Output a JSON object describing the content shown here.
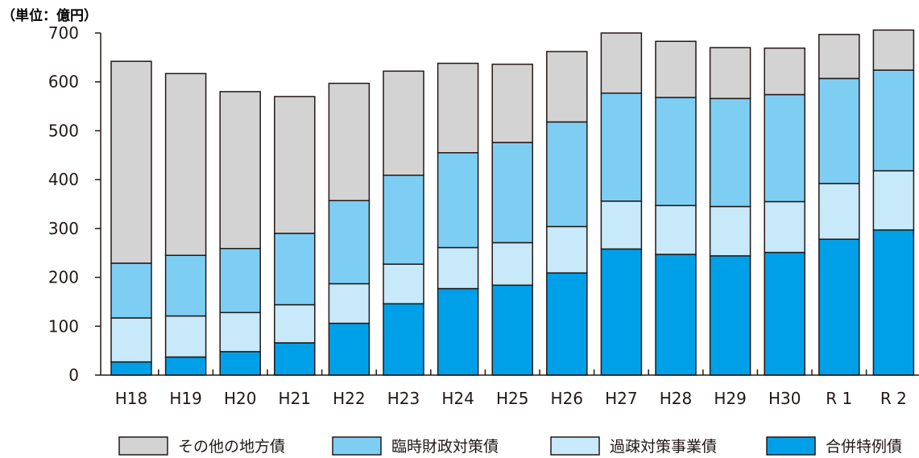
{
  "chart_data": {
    "type": "bar",
    "stacked": true,
    "unit_label": "（単位：億円）",
    "categories": [
      "H18",
      "H19",
      "H20",
      "H21",
      "H22",
      "H23",
      "H24",
      "H25",
      "H26",
      "H27",
      "H28",
      "H29",
      "H30",
      "R 1",
      "R 2"
    ],
    "ylim": [
      0,
      700
    ],
    "yticks": [
      0,
      100,
      200,
      300,
      400,
      500,
      600,
      700
    ],
    "grid": false,
    "legend_position": "bottom",
    "series": [
      {
        "name": "合併特例債",
        "color": "#00a0e9",
        "values": [
          27,
          37,
          48,
          66,
          106,
          146,
          177,
          184,
          209,
          258,
          247,
          244,
          251,
          278,
          297
        ]
      },
      {
        "name": "過疎対策事業債",
        "color": "#c7e9f9",
        "values": [
          90,
          84,
          80,
          78,
          81,
          81,
          84,
          87,
          95,
          98,
          100,
          101,
          104,
          114,
          121
        ]
      },
      {
        "name": "臨時財政対策債",
        "color": "#7ecef4",
        "values": [
          112,
          124,
          131,
          146,
          170,
          182,
          194,
          205,
          214,
          221,
          221,
          221,
          219,
          215,
          206
        ]
      },
      {
        "name": "その他の地方債",
        "color": "#d3d3d4",
        "values": [
          413,
          372,
          321,
          280,
          240,
          213,
          183,
          160,
          144,
          123,
          115,
          104,
          95,
          90,
          82
        ]
      }
    ],
    "legend_order": [
      "その他の地方債",
      "臨時財政対策債",
      "過疎対策事業債",
      "合併特例債"
    ]
  }
}
